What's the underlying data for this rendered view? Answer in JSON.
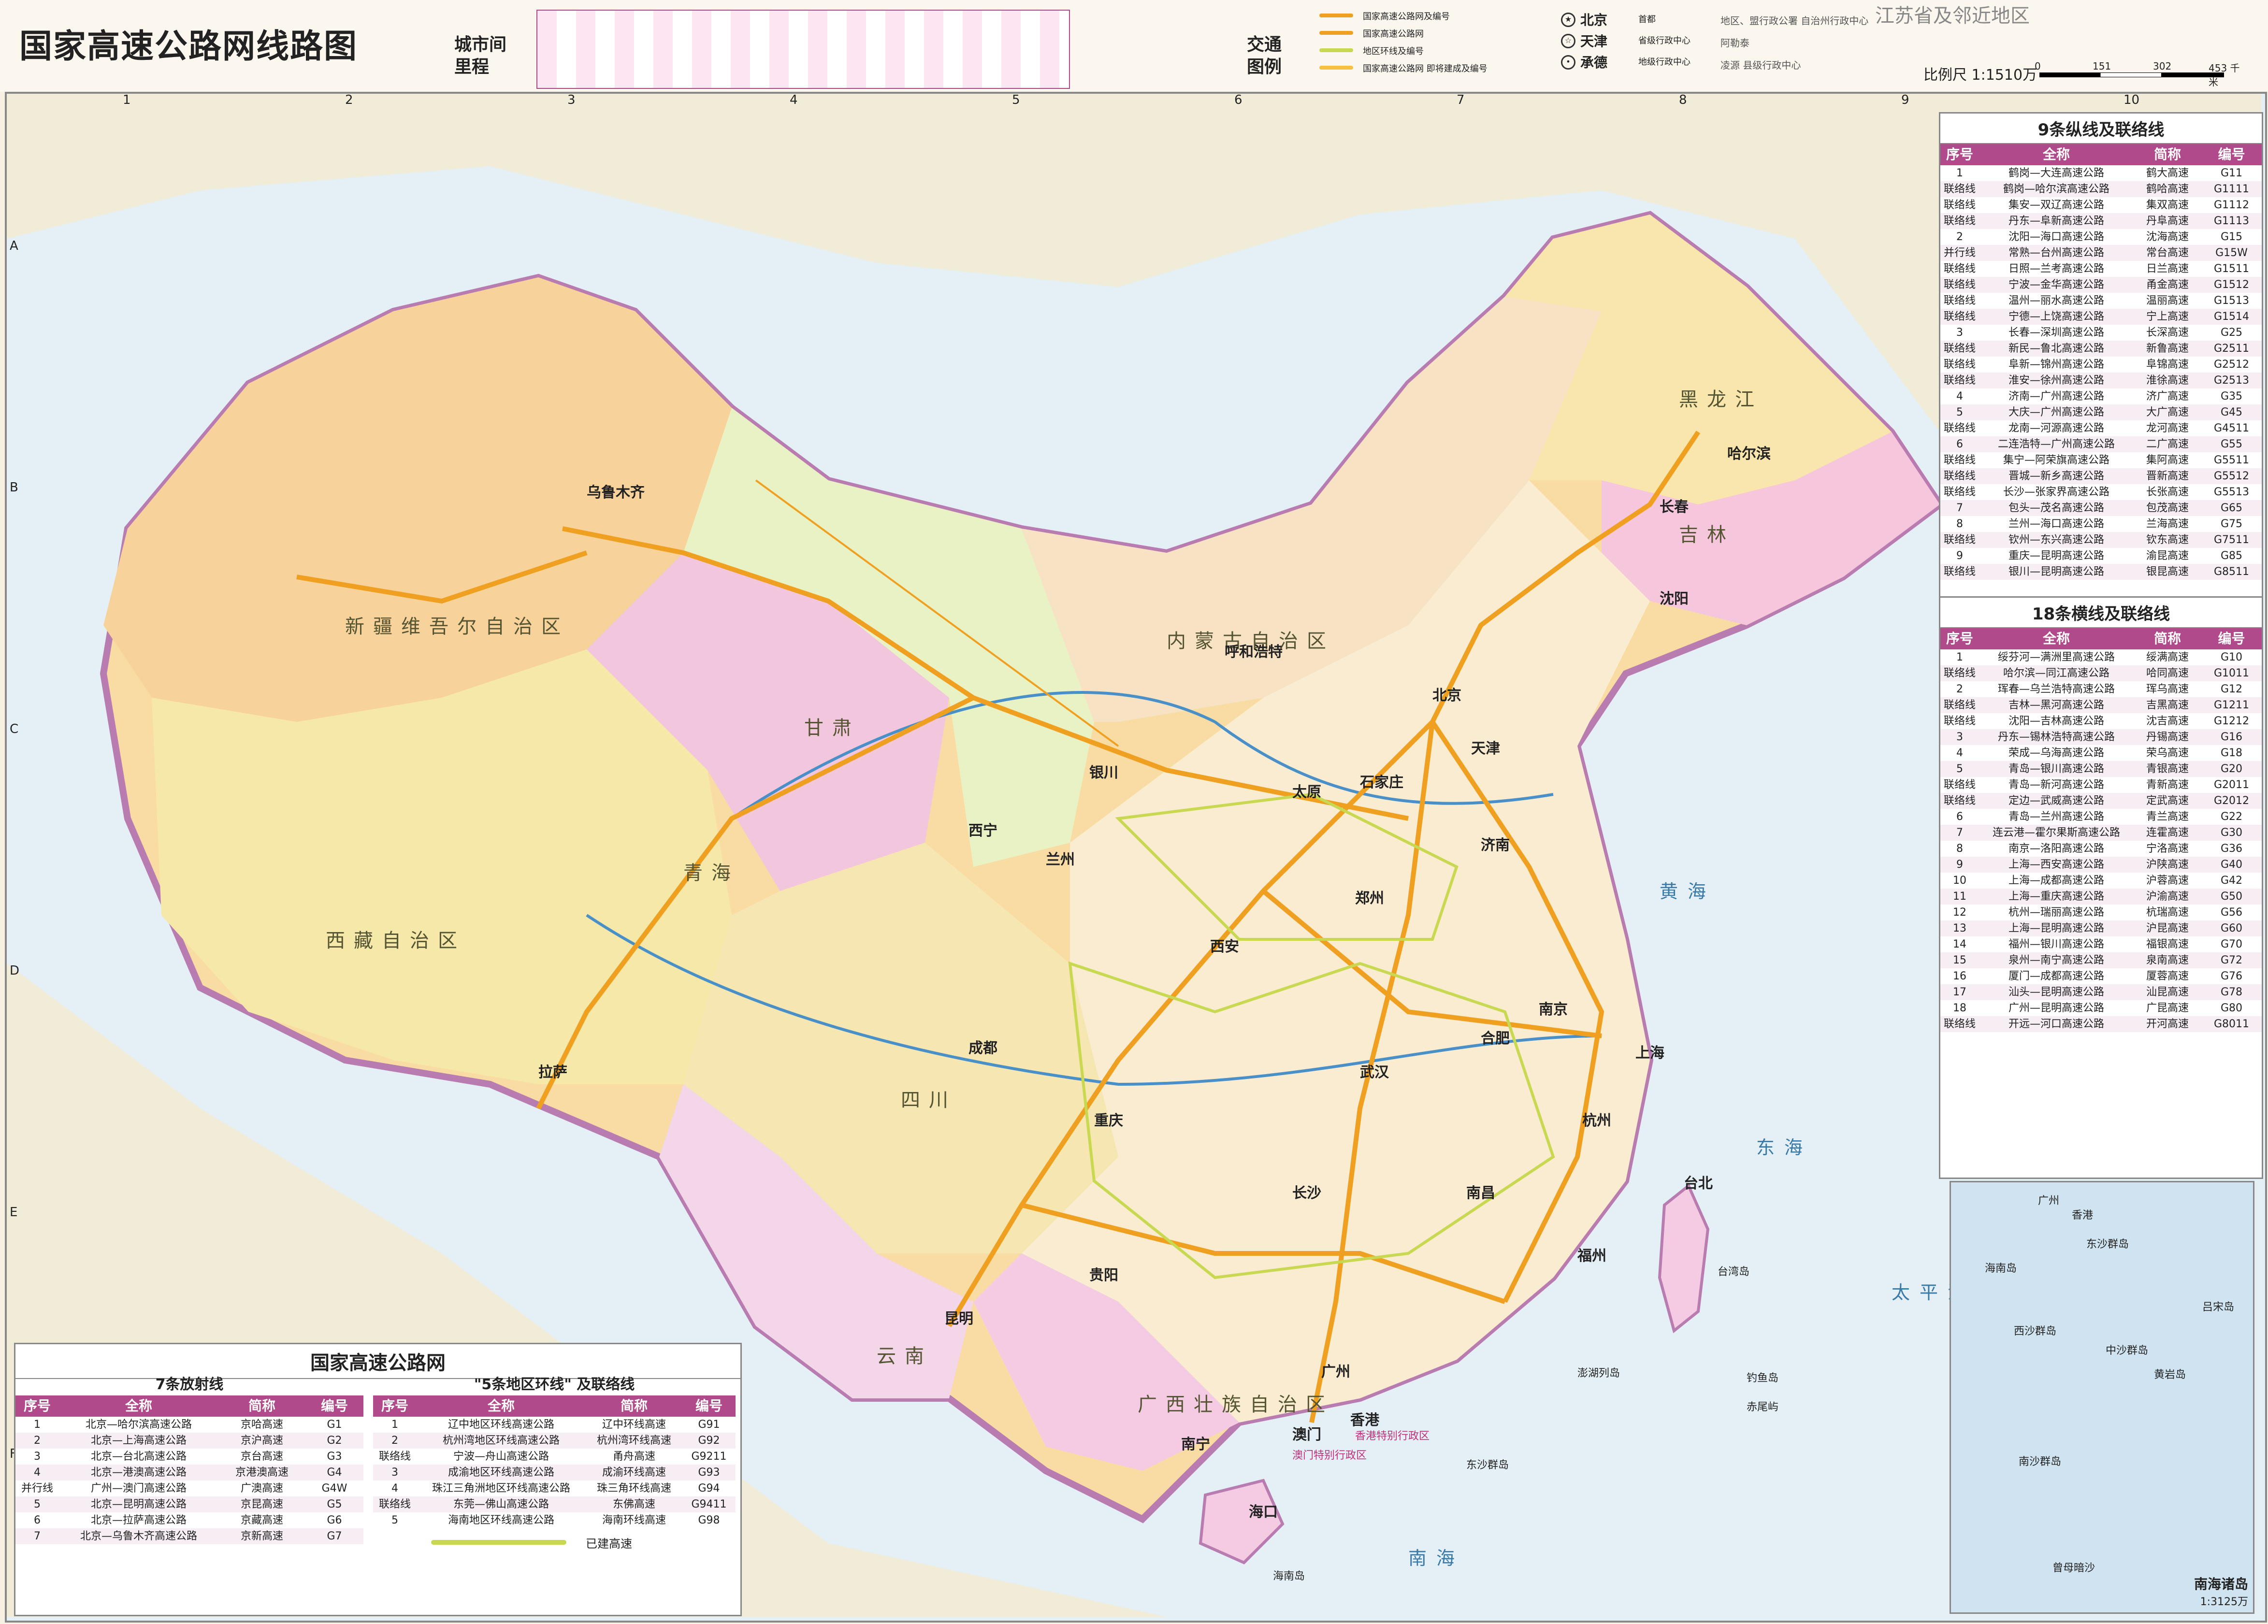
{
  "header": {
    "title": "国家高速公路网线路图",
    "mileage_label": "城市间\n里程",
    "legend_label": "交通\n图例",
    "corner_text": "江苏省及邻近地区",
    "scale_label": "比例尺 1:1510万",
    "scale_ticks": [
      "0",
      "151",
      "302",
      "453 千米"
    ]
  },
  "legend": {
    "lines": [
      {
        "label": "国家高速公路网及编号",
        "color": "#f0a020"
      },
      {
        "label": "国家高速公路网",
        "color": "#f0a020"
      },
      {
        "label": "地区环线及编号",
        "color": "#c8d850"
      },
      {
        "label": "国家高速公路网 即将建成及编号",
        "color": "#f6c040"
      }
    ],
    "cities": [
      {
        "name": "北京",
        "desc": "首都",
        "sym": "★"
      },
      {
        "name": "天津",
        "desc": "省级行政中心",
        "sym": "☆"
      },
      {
        "name": "承德",
        "desc": "地级行政中心",
        "sym": "•"
      }
    ],
    "misc": [
      "地区、盟行政公署 自治州行政中心",
      "阿勒泰",
      "凌源 县级行政中心"
    ]
  },
  "map": {
    "col_labels": [
      "1",
      "2",
      "3",
      "4",
      "5",
      "6",
      "7",
      "8",
      "9",
      "10"
    ],
    "row_labels": [
      "A",
      "B",
      "C",
      "D",
      "E",
      "F"
    ],
    "regions": [
      {
        "text": "新疆维吾尔自治区"
      },
      {
        "text": "西藏自治区"
      },
      {
        "text": "青海"
      },
      {
        "text": "甘肃"
      },
      {
        "text": "内蒙古自治区"
      },
      {
        "text": "四川"
      },
      {
        "text": "云南"
      },
      {
        "text": "广西壮族自治区"
      },
      {
        "text": "黑龙江"
      },
      {
        "text": "吉林"
      }
    ],
    "seas": [
      {
        "text": "黄海"
      },
      {
        "text": "东海"
      },
      {
        "text": "太平洋"
      },
      {
        "text": "南海"
      }
    ],
    "cities": [
      {
        "name": "北京",
        "big": true
      },
      {
        "name": "天津",
        "big": true
      },
      {
        "name": "乌鲁木齐",
        "big": true
      },
      {
        "name": "拉萨",
        "big": true
      },
      {
        "name": "西宁",
        "big": true
      },
      {
        "name": "兰州",
        "big": true
      },
      {
        "name": "成都",
        "big": true
      },
      {
        "name": "重庆",
        "big": true
      },
      {
        "name": "昆明",
        "big": true
      },
      {
        "name": "贵阳",
        "big": true
      },
      {
        "name": "南宁",
        "big": true
      },
      {
        "name": "广州",
        "big": true
      },
      {
        "name": "长沙",
        "big": true
      },
      {
        "name": "武汉",
        "big": true
      },
      {
        "name": "南昌",
        "big": true
      },
      {
        "name": "福州",
        "big": true
      },
      {
        "name": "杭州",
        "big": true
      },
      {
        "name": "上海",
        "big": true
      },
      {
        "name": "南京",
        "big": true
      },
      {
        "name": "合肥",
        "big": true
      },
      {
        "name": "郑州",
        "big": true
      },
      {
        "name": "济南",
        "big": true
      },
      {
        "name": "石家庄",
        "big": true
      },
      {
        "name": "太原",
        "big": true
      },
      {
        "name": "西安",
        "big": true
      },
      {
        "name": "银川",
        "big": true
      },
      {
        "name": "呼和浩特",
        "big": true
      },
      {
        "name": "沈阳",
        "big": true
      },
      {
        "name": "长春",
        "big": true
      },
      {
        "name": "哈尔滨",
        "big": true
      },
      {
        "name": "海口",
        "big": true
      },
      {
        "name": "台北",
        "big": true
      },
      {
        "name": "香港",
        "big": true
      },
      {
        "name": "澳门",
        "big": true
      }
    ],
    "islands": [
      "台湾岛",
      "海南岛",
      "东沙群岛",
      "澎湖列岛",
      "钓鱼岛",
      "赤尾屿"
    ],
    "special_regions": [
      "香港特别行政区",
      "澳门特别行政区"
    ]
  },
  "radial_table": {
    "panel_title": "国家高速公路网",
    "title": "7条放射线",
    "headers": [
      "序号",
      "全称",
      "简称",
      "编号"
    ],
    "rows": [
      [
        "1",
        "北京—哈尔滨高速公路",
        "京哈高速",
        "G1"
      ],
      [
        "2",
        "北京—上海高速公路",
        "京沪高速",
        "G2"
      ],
      [
        "3",
        "北京—台北高速公路",
        "京台高速",
        "G3"
      ],
      [
        "4",
        "北京—港澳高速公路",
        "京港澳高速",
        "G4"
      ],
      [
        "并行线",
        "广州—澳门高速公路",
        "广澳高速",
        "G4W"
      ],
      [
        "5",
        "北京—昆明高速公路",
        "京昆高速",
        "G5"
      ],
      [
        "6",
        "北京—拉萨高速公路",
        "京藏高速",
        "G6"
      ],
      [
        "7",
        "北京—乌鲁木齐高速公路",
        "京新高速",
        "G7"
      ]
    ]
  },
  "ring_table": {
    "title": "\"5条地区环线\" 及联络线",
    "headers": [
      "序号",
      "全称",
      "简称",
      "编号"
    ],
    "rows": [
      [
        "1",
        "辽中地区环线高速公路",
        "辽中环线高速",
        "G91"
      ],
      [
        "2",
        "杭州湾地区环线高速公路",
        "杭州湾环线高速",
        "G92"
      ],
      [
        "联络线",
        "宁波—舟山高速公路",
        "甬舟高速",
        "G9211"
      ],
      [
        "3",
        "成渝地区环线高速公路",
        "成渝环线高速",
        "G93"
      ],
      [
        "4",
        "珠江三角洲地区环线高速公路",
        "珠三角环线高速",
        "G94"
      ],
      [
        "联络线",
        "东莞—佛山高速公路",
        "东佛高速",
        "G9411"
      ],
      [
        "5",
        "海南地区环线高速公路",
        "海南环线高速",
        "G98"
      ]
    ],
    "built_label": "已建高速"
  },
  "vertical_table": {
    "title": "9条纵线及联络线",
    "headers": [
      "序号",
      "全称",
      "简称",
      "编号"
    ],
    "rows": [
      [
        "1",
        "鹤岗—大连高速公路",
        "鹤大高速",
        "G11"
      ],
      [
        "联络线",
        "鹤岗—哈尔滨高速公路",
        "鹤哈高速",
        "G1111"
      ],
      [
        "联络线",
        "集安—双辽高速公路",
        "集双高速",
        "G1112"
      ],
      [
        "联络线",
        "丹东—阜新高速公路",
        "丹阜高速",
        "G1113"
      ],
      [
        "2",
        "沈阳—海口高速公路",
        "沈海高速",
        "G15"
      ],
      [
        "并行线",
        "常熟—台州高速公路",
        "常台高速",
        "G15W"
      ],
      [
        "联络线",
        "日照—兰考高速公路",
        "日兰高速",
        "G1511"
      ],
      [
        "联络线",
        "宁波—金华高速公路",
        "甬金高速",
        "G1512"
      ],
      [
        "联络线",
        "温州—丽水高速公路",
        "温丽高速",
        "G1513"
      ],
      [
        "联络线",
        "宁德—上饶高速公路",
        "宁上高速",
        "G1514"
      ],
      [
        "3",
        "长春—深圳高速公路",
        "长深高速",
        "G25"
      ],
      [
        "联络线",
        "新民—鲁北高速公路",
        "新鲁高速",
        "G2511"
      ],
      [
        "联络线",
        "阜新—锦州高速公路",
        "阜锦高速",
        "G2512"
      ],
      [
        "联络线",
        "淮安—徐州高速公路",
        "淮徐高速",
        "G2513"
      ],
      [
        "4",
        "济南—广州高速公路",
        "济广高速",
        "G35"
      ],
      [
        "5",
        "大庆—广州高速公路",
        "大广高速",
        "G45"
      ],
      [
        "联络线",
        "龙南—河源高速公路",
        "龙河高速",
        "G4511"
      ],
      [
        "6",
        "二连浩特—广州高速公路",
        "二广高速",
        "G55"
      ],
      [
        "联络线",
        "集宁—阿荣旗高速公路",
        "集阿高速",
        "G5511"
      ],
      [
        "联络线",
        "晋城—新乡高速公路",
        "晋新高速",
        "G5512"
      ],
      [
        "联络线",
        "长沙—张家界高速公路",
        "长张高速",
        "G5513"
      ],
      [
        "7",
        "包头—茂名高速公路",
        "包茂高速",
        "G65"
      ],
      [
        "8",
        "兰州—海口高速公路",
        "兰海高速",
        "G75"
      ],
      [
        "联络线",
        "钦州—东兴高速公路",
        "钦东高速",
        "G7511"
      ],
      [
        "9",
        "重庆—昆明高速公路",
        "渝昆高速",
        "G85"
      ],
      [
        "联络线",
        "银川—昆明高速公路",
        "银昆高速",
        "G8511"
      ]
    ]
  },
  "horizontal_table": {
    "title": "18条横线及联络线",
    "headers": [
      "序号",
      "全称",
      "简称",
      "编号"
    ],
    "rows": [
      [
        "1",
        "绥芬河—满洲里高速公路",
        "绥满高速",
        "G10"
      ],
      [
        "联络线",
        "哈尔滨—同江高速公路",
        "哈同高速",
        "G1011"
      ],
      [
        "2",
        "珲春—乌兰浩特高速公路",
        "珲乌高速",
        "G12"
      ],
      [
        "联络线",
        "吉林—黑河高速公路",
        "吉黑高速",
        "G1211"
      ],
      [
        "联络线",
        "沈阳—吉林高速公路",
        "沈吉高速",
        "G1212"
      ],
      [
        "3",
        "丹东—锡林浩特高速公路",
        "丹锡高速",
        "G16"
      ],
      [
        "4",
        "荣成—乌海高速公路",
        "荣乌高速",
        "G18"
      ],
      [
        "5",
        "青岛—银川高速公路",
        "青银高速",
        "G20"
      ],
      [
        "联络线",
        "青岛—新河高速公路",
        "青新高速",
        "G2011"
      ],
      [
        "联络线",
        "定边—武威高速公路",
        "定武高速",
        "G2012"
      ],
      [
        "6",
        "青岛—兰州高速公路",
        "青兰高速",
        "G22"
      ],
      [
        "7",
        "连云港—霍尔果斯高速公路",
        "连霍高速",
        "G30"
      ],
      [
        "8",
        "南京—洛阳高速公路",
        "宁洛高速",
        "G36"
      ],
      [
        "9",
        "上海—西安高速公路",
        "沪陕高速",
        "G40"
      ],
      [
        "10",
        "上海—成都高速公路",
        "沪蓉高速",
        "G42"
      ],
      [
        "11",
        "上海—重庆高速公路",
        "沪渝高速",
        "G50"
      ],
      [
        "12",
        "杭州—瑞丽高速公路",
        "杭瑞高速",
        "G56"
      ],
      [
        "13",
        "上海—昆明高速公路",
        "沪昆高速",
        "G60"
      ],
      [
        "14",
        "福州—银川高速公路",
        "福银高速",
        "G70"
      ],
      [
        "15",
        "泉州—南宁高速公路",
        "泉南高速",
        "G72"
      ],
      [
        "16",
        "厦门—成都高速公路",
        "厦蓉高速",
        "G76"
      ],
      [
        "17",
        "汕头—昆明高速公路",
        "汕昆高速",
        "G78"
      ],
      [
        "18",
        "广州—昆明高速公路",
        "广昆高速",
        "G80"
      ],
      [
        "联络线",
        "开远—河口高速公路",
        "开河高速",
        "G8011"
      ]
    ]
  },
  "inset": {
    "title": "南海诸岛",
    "scale": "1:3125万",
    "labels": [
      "广州",
      "香港",
      "海南岛",
      "东沙群岛",
      "西沙群岛",
      "中沙群岛",
      "南沙群岛",
      "黄岩岛",
      "吕宋岛",
      "曾母暗沙"
    ]
  }
}
